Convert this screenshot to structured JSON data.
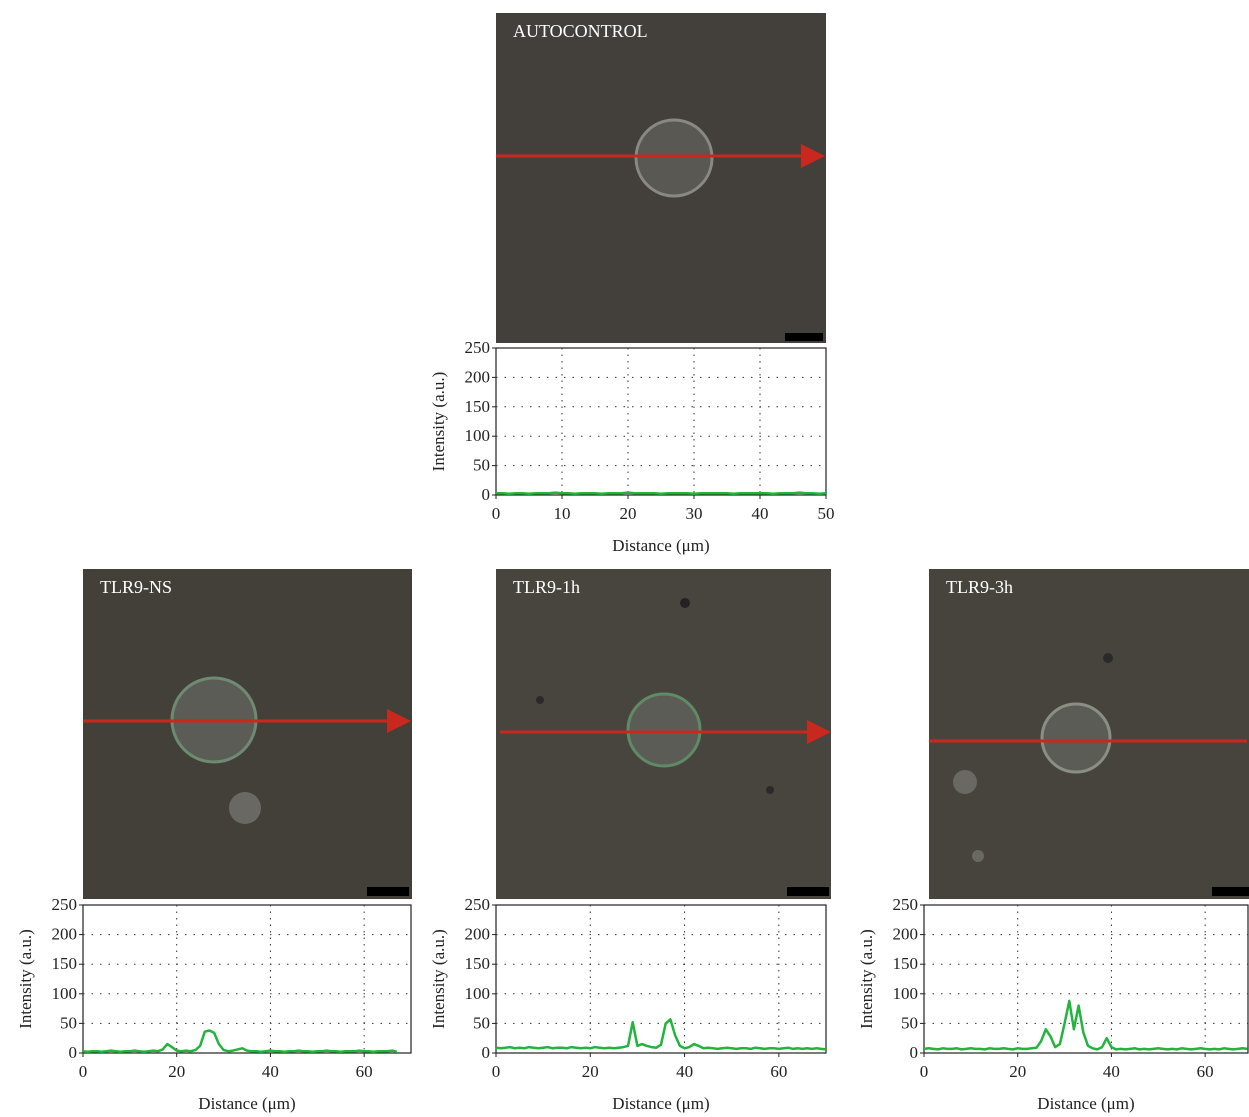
{
  "chart_data": [
    {
      "type": "line",
      "title": "AUTOCONTROL",
      "x_label": "Distance (μm)",
      "y_label": "Intensity (a.u.)",
      "color": "#22b43c",
      "grid": true,
      "xlim": [
        0,
        50
      ],
      "xticks": [
        0,
        10,
        20,
        30,
        40,
        50
      ],
      "ylim": [
        0,
        250
      ],
      "yticks": [
        0,
        50,
        100,
        150,
        200,
        250
      ],
      "x": [
        0,
        1,
        2,
        3,
        4,
        5,
        6,
        7,
        8,
        9,
        10,
        11,
        12,
        13,
        14,
        15,
        16,
        17,
        18,
        19,
        20,
        21,
        22,
        23,
        24,
        25,
        26,
        27,
        28,
        29,
        30,
        31,
        32,
        33,
        34,
        35,
        36,
        37,
        38,
        39,
        40,
        41,
        42,
        43,
        44,
        45,
        46,
        47,
        48,
        49,
        50
      ],
      "values": [
        3,
        3,
        2,
        3,
        3,
        2,
        3,
        3,
        3,
        4,
        3,
        3,
        2,
        3,
        3,
        3,
        2,
        3,
        3,
        3,
        4,
        3,
        3,
        3,
        3,
        2,
        3,
        3,
        3,
        3,
        2,
        3,
        3,
        3,
        3,
        3,
        2,
        3,
        3,
        3,
        3,
        3,
        2,
        3,
        3,
        3,
        4,
        3,
        3,
        2,
        3
      ]
    },
    {
      "type": "line",
      "title": "TLR9-NS",
      "x_label": "Distance (μm)",
      "y_label": "Intensity (a.u.)",
      "color": "#22b43c",
      "grid": true,
      "xlim": [
        0,
        70
      ],
      "xticks": [
        0,
        20,
        40,
        60
      ],
      "ylim": [
        0,
        250
      ],
      "yticks": [
        0,
        50,
        100,
        150,
        200,
        250
      ],
      "x": [
        0,
        1,
        2,
        3,
        4,
        5,
        6,
        7,
        8,
        9,
        10,
        11,
        12,
        13,
        14,
        15,
        16,
        17,
        18,
        19,
        20,
        21,
        22,
        23,
        24,
        25,
        26,
        27,
        28,
        29,
        30,
        31,
        32,
        33,
        34,
        35,
        36,
        37,
        38,
        39,
        40,
        41,
        42,
        43,
        44,
        45,
        46,
        47,
        48,
        49,
        50,
        51,
        52,
        53,
        54,
        55,
        56,
        57,
        58,
        59,
        60,
        61,
        62,
        63,
        64,
        65,
        66,
        67
      ],
      "values": [
        3,
        2,
        3,
        3,
        2,
        3,
        4,
        3,
        2,
        3,
        3,
        4,
        3,
        2,
        3,
        4,
        3,
        6,
        15,
        10,
        4,
        3,
        4,
        3,
        5,
        12,
        36,
        38,
        34,
        15,
        5,
        3,
        4,
        6,
        8,
        4,
        3,
        3,
        2,
        3,
        4,
        3,
        3,
        2,
        3,
        3,
        4,
        3,
        3,
        2,
        3,
        3,
        4,
        3,
        3,
        2,
        3,
        3,
        3,
        4,
        3,
        3,
        2,
        3,
        3,
        3,
        4,
        2
      ]
    },
    {
      "type": "line",
      "title": "TLR9-1h",
      "x_label": "Distance (μm)",
      "y_label": "Intensity (a.u.)",
      "color": "#22b43c",
      "grid": true,
      "xlim": [
        0,
        70
      ],
      "xticks": [
        0,
        20,
        40,
        60
      ],
      "ylim": [
        0,
        250
      ],
      "yticks": [
        0,
        50,
        100,
        150,
        200,
        250
      ],
      "x": [
        0,
        1,
        2,
        3,
        4,
        5,
        6,
        7,
        8,
        9,
        10,
        11,
        12,
        13,
        14,
        15,
        16,
        17,
        18,
        19,
        20,
        21,
        22,
        23,
        24,
        25,
        26,
        27,
        28,
        29,
        30,
        31,
        32,
        33,
        34,
        35,
        36,
        37,
        38,
        39,
        40,
        41,
        42,
        43,
        44,
        45,
        46,
        47,
        48,
        49,
        50,
        51,
        52,
        53,
        54,
        55,
        56,
        57,
        58,
        59,
        60,
        61,
        62,
        63,
        64,
        65,
        66,
        67,
        68,
        69,
        70
      ],
      "values": [
        9,
        8,
        9,
        10,
        8,
        9,
        8,
        10,
        9,
        8,
        9,
        10,
        8,
        9,
        9,
        8,
        10,
        9,
        8,
        9,
        8,
        10,
        9,
        8,
        9,
        8,
        9,
        10,
        12,
        52,
        12,
        15,
        12,
        10,
        9,
        14,
        50,
        57,
        30,
        12,
        8,
        10,
        15,
        12,
        8,
        9,
        8,
        7,
        8,
        9,
        8,
        7,
        8,
        8,
        7,
        9,
        8,
        7,
        8,
        8,
        7,
        8,
        9,
        7,
        8,
        7,
        8,
        7,
        8,
        7,
        6
      ]
    },
    {
      "type": "line",
      "title": "TLR9-3h",
      "x_label": "Distance (μm)",
      "y_label": "Intensity (a.u.)",
      "color": "#22b43c",
      "grid": true,
      "xlim": [
        0,
        70
      ],
      "xticks": [
        0,
        20,
        40,
        60
      ],
      "ylim": [
        0,
        250
      ],
      "yticks": [
        0,
        50,
        100,
        150,
        200,
        250
      ],
      "x": [
        0,
        1,
        2,
        3,
        4,
        5,
        6,
        7,
        8,
        9,
        10,
        11,
        12,
        13,
        14,
        15,
        16,
        17,
        18,
        19,
        20,
        21,
        22,
        23,
        24,
        25,
        26,
        27,
        28,
        29,
        30,
        31,
        32,
        33,
        34,
        35,
        36,
        37,
        38,
        39,
        40,
        41,
        42,
        43,
        44,
        45,
        46,
        47,
        48,
        49,
        50,
        51,
        52,
        53,
        54,
        55,
        56,
        57,
        58,
        59,
        60,
        61,
        62,
        63,
        64,
        65,
        66,
        67,
        68,
        69
      ],
      "values": [
        7,
        8,
        7,
        6,
        8,
        7,
        7,
        8,
        6,
        7,
        8,
        7,
        7,
        6,
        8,
        7,
        7,
        8,
        7,
        6,
        8,
        7,
        7,
        8,
        9,
        20,
        40,
        28,
        10,
        15,
        50,
        88,
        40,
        80,
        35,
        12,
        8,
        6,
        10,
        25,
        10,
        6,
        7,
        6,
        7,
        8,
        6,
        7,
        6,
        7,
        8,
        7,
        6,
        7,
        6,
        8,
        7,
        6,
        7,
        8,
        7,
        6,
        7,
        6,
        8,
        7,
        6,
        7,
        8,
        7
      ]
    }
  ]
}
